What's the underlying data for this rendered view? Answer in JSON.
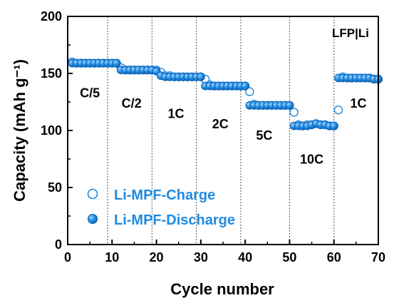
{
  "chart_data": {
    "type": "scatter",
    "xlabel": "Cycle number",
    "ylabel": "Capacity (mAh g⁻¹)",
    "xlim": [
      0,
      70
    ],
    "ylim": [
      0,
      200
    ],
    "xticks": [
      "0",
      "10",
      "20",
      "30",
      "40",
      "50",
      "60",
      "70"
    ],
    "yticks": [
      "0",
      "50",
      "100",
      "150",
      "200"
    ],
    "x_tick_values": [
      0,
      10,
      20,
      30,
      40,
      50,
      60,
      70
    ],
    "y_tick_values": [
      0,
      50,
      100,
      150,
      200
    ],
    "rate_boundaries": [
      9,
      19,
      29,
      39,
      50,
      60
    ],
    "corner_label": "LFP|Li",
    "rate_labels": [
      {
        "text": "C/5",
        "x": 5,
        "y": 129
      },
      {
        "text": "C/2",
        "x": 14.4,
        "y": 120
      },
      {
        "text": "1C",
        "x": 24.4,
        "y": 111
      },
      {
        "text": "2C",
        "x": 34.4,
        "y": 102
      },
      {
        "text": "5C",
        "x": 44.3,
        "y": 92
      },
      {
        "text": "10C",
        "x": 55,
        "y": 71
      },
      {
        "text": "1C",
        "x": 65.5,
        "y": 120
      }
    ],
    "series": [
      {
        "name": "Li-MPF-Charge",
        "marker": "open",
        "color": "#1f8ae0",
        "points": [
          [
            1,
            160
          ],
          [
            2,
            159
          ],
          [
            3,
            159
          ],
          [
            4,
            159
          ],
          [
            5,
            159
          ],
          [
            6,
            159
          ],
          [
            7,
            159
          ],
          [
            8,
            159
          ],
          [
            9,
            159
          ],
          [
            10,
            159
          ],
          [
            11,
            159
          ],
          [
            12,
            155
          ],
          [
            13,
            153
          ],
          [
            14,
            153
          ],
          [
            15,
            153
          ],
          [
            16,
            153
          ],
          [
            17,
            153
          ],
          [
            18,
            153
          ],
          [
            19,
            153
          ],
          [
            20,
            153
          ],
          [
            21,
            151
          ],
          [
            22,
            148
          ],
          [
            23,
            148
          ],
          [
            24,
            147
          ],
          [
            25,
            147
          ],
          [
            26,
            147
          ],
          [
            27,
            147
          ],
          [
            28,
            147
          ],
          [
            29,
            147
          ],
          [
            30,
            147
          ],
          [
            31,
            145
          ],
          [
            32,
            140
          ],
          [
            33,
            139
          ],
          [
            34,
            139
          ],
          [
            35,
            139
          ],
          [
            36,
            139
          ],
          [
            37,
            139
          ],
          [
            38,
            139
          ],
          [
            39,
            139
          ],
          [
            40,
            139
          ],
          [
            41,
            134
          ],
          [
            42,
            123
          ],
          [
            43,
            122
          ],
          [
            44,
            122
          ],
          [
            45,
            122
          ],
          [
            46,
            122
          ],
          [
            47,
            122
          ],
          [
            48,
            122
          ],
          [
            49,
            122
          ],
          [
            50,
            122
          ],
          [
            51,
            116
          ],
          [
            52,
            105
          ],
          [
            53,
            104
          ],
          [
            54,
            105
          ],
          [
            55,
            105
          ],
          [
            56,
            106
          ],
          [
            57,
            105
          ],
          [
            58,
            105
          ],
          [
            59,
            104
          ],
          [
            60,
            104
          ],
          [
            61,
            118
          ],
          [
            62,
            147
          ],
          [
            63,
            146
          ],
          [
            64,
            146
          ],
          [
            65,
            146
          ],
          [
            66,
            146
          ],
          [
            67,
            146
          ],
          [
            68,
            146
          ],
          [
            69,
            145
          ],
          [
            70,
            145
          ]
        ]
      },
      {
        "name": "Li-MPF-Discharge",
        "marker": "filled",
        "color": "#1f8ae0",
        "points": [
          [
            1,
            159
          ],
          [
            2,
            159
          ],
          [
            3,
            159
          ],
          [
            4,
            159
          ],
          [
            5,
            159
          ],
          [
            6,
            159
          ],
          [
            7,
            159
          ],
          [
            8,
            159
          ],
          [
            9,
            159
          ],
          [
            10,
            159
          ],
          [
            11,
            159
          ],
          [
            12,
            153
          ],
          [
            13,
            153
          ],
          [
            14,
            153
          ],
          [
            15,
            153
          ],
          [
            16,
            153
          ],
          [
            17,
            153
          ],
          [
            18,
            153
          ],
          [
            19,
            153
          ],
          [
            20,
            152
          ],
          [
            21,
            148
          ],
          [
            22,
            147
          ],
          [
            23,
            147
          ],
          [
            24,
            147
          ],
          [
            25,
            147
          ],
          [
            26,
            147
          ],
          [
            27,
            147
          ],
          [
            28,
            147
          ],
          [
            29,
            147
          ],
          [
            30,
            147
          ],
          [
            31,
            139
          ],
          [
            32,
            139
          ],
          [
            33,
            139
          ],
          [
            34,
            139
          ],
          [
            35,
            139
          ],
          [
            36,
            139
          ],
          [
            37,
            139
          ],
          [
            38,
            139
          ],
          [
            39,
            139
          ],
          [
            40,
            139
          ],
          [
            41,
            122
          ],
          [
            42,
            122
          ],
          [
            43,
            122
          ],
          [
            44,
            122
          ],
          [
            45,
            122
          ],
          [
            46,
            122
          ],
          [
            47,
            122
          ],
          [
            48,
            122
          ],
          [
            49,
            122
          ],
          [
            50,
            122
          ],
          [
            51,
            104
          ],
          [
            52,
            104
          ],
          [
            53,
            104
          ],
          [
            54,
            104
          ],
          [
            55,
            105
          ],
          [
            56,
            106
          ],
          [
            57,
            105
          ],
          [
            58,
            105
          ],
          [
            59,
            104
          ],
          [
            60,
            104
          ],
          [
            61,
            146
          ],
          [
            62,
            146
          ],
          [
            63,
            146
          ],
          [
            64,
            146
          ],
          [
            65,
            146
          ],
          [
            66,
            146
          ],
          [
            67,
            146
          ],
          [
            68,
            146
          ],
          [
            69,
            145
          ],
          [
            70,
            145
          ]
        ]
      }
    ]
  }
}
